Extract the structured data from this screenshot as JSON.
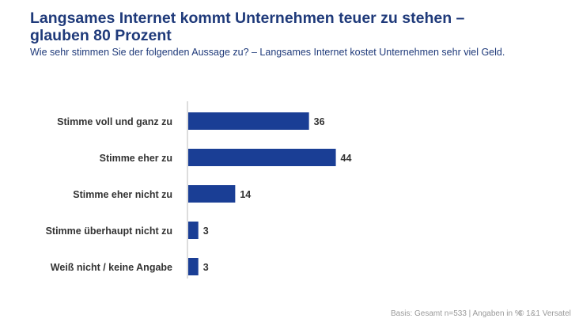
{
  "title_line1": "Langsames Internet kommt Unternehmen teuer zu stehen –",
  "title_line2": "glauben 80 Prozent",
  "subtitle": "Wie sehr stimmen Sie der folgenden Aussage zu? – Langsames Internet kostet Unternehmen sehr viel Geld.",
  "footer": "Basis: Gesamt n=533 | Angaben in %",
  "copyright": "© 1&1 Versatel",
  "chart_data": {
    "type": "bar",
    "orientation": "horizontal",
    "categories": [
      "Stimme voll und ganz zu",
      "Stimme eher zu",
      "Stimme eher nicht zu",
      "Stimme überhaupt nicht zu",
      "Weiß nicht / keine Angabe"
    ],
    "values": [
      36,
      44,
      14,
      3,
      3
    ],
    "unit": "%",
    "bar_color": "#1a3e95",
    "grid": false
  }
}
